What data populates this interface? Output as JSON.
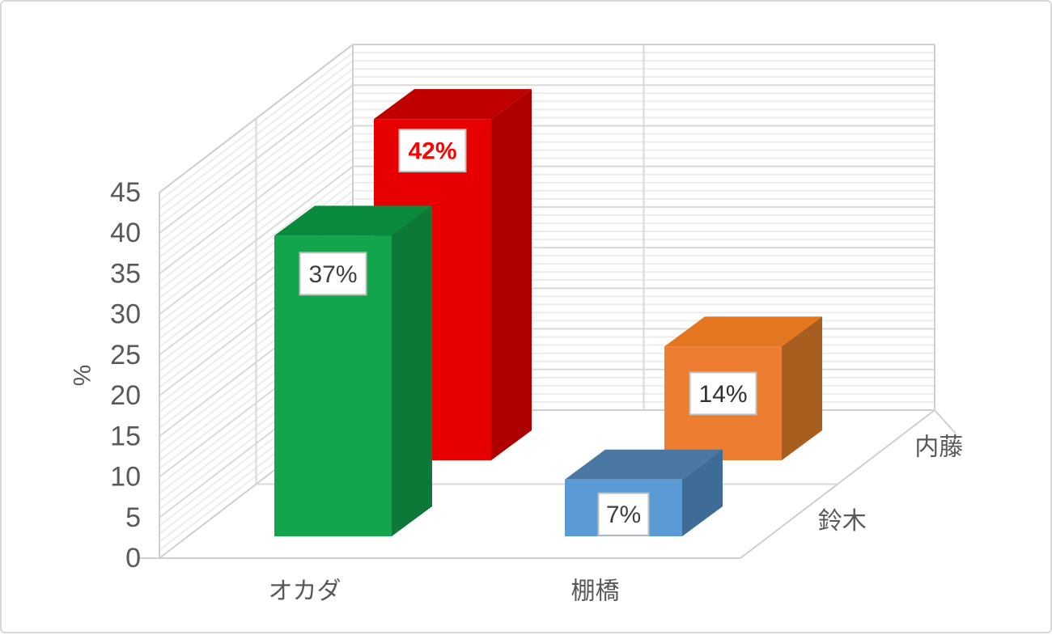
{
  "chart_data": {
    "type": "bar",
    "projection": "3d-column",
    "title": "",
    "categories": [
      "オカダ",
      "棚橋"
    ],
    "value_axis": {
      "title": "%",
      "min": 0,
      "max": 45,
      "major_unit": 5,
      "minor_unit": 1,
      "tick_labels": [
        "0",
        "5",
        "10",
        "15",
        "20",
        "25",
        "30",
        "35",
        "40",
        "45"
      ],
      "label_color": "#595959"
    },
    "category_axis": {
      "labels": [
        "オカダ",
        "棚橋"
      ],
      "label_color": "#595959"
    },
    "series_axis": {
      "labels": [
        "鈴木",
        "内藤"
      ],
      "label_color": "#595959"
    },
    "grid": {
      "minor_color": "#ECECEC",
      "major_color": "#D9D9D9",
      "edge_color": "#CFCFCF",
      "grid_on": true
    },
    "data_label_box": {
      "fill": "#FFFFFF",
      "border": "#C0C0C0"
    },
    "series": [
      {
        "name": "鈴木",
        "depth": "front",
        "points": [
          {
            "category": "オカダ",
            "value": 37,
            "label": "37%",
            "label_color": "#3F3F3F",
            "label_bold": false,
            "front": "#12A54C",
            "top": "#0A8A3C",
            "side": "#0C7939"
          },
          {
            "category": "棚橋",
            "value": 7,
            "label": "7%",
            "label_color": "#3F3F3F",
            "label_bold": false,
            "front": "#5B9BD5",
            "top": "#4A78A3",
            "side": "#3E6C96"
          }
        ]
      },
      {
        "name": "内藤",
        "depth": "back",
        "points": [
          {
            "category": "オカダ",
            "value": 42,
            "label": "42%",
            "label_color": "#FF0000",
            "label_bold": true,
            "front": "#E60000",
            "top": "#C00000",
            "side": "#AF0000"
          },
          {
            "category": "棚橋",
            "value": 14,
            "label": "14%",
            "label_color": "#303030",
            "label_bold": false,
            "front": "#ED7D31",
            "top": "#E4761F",
            "side": "#A85E1F"
          }
        ]
      }
    ]
  }
}
